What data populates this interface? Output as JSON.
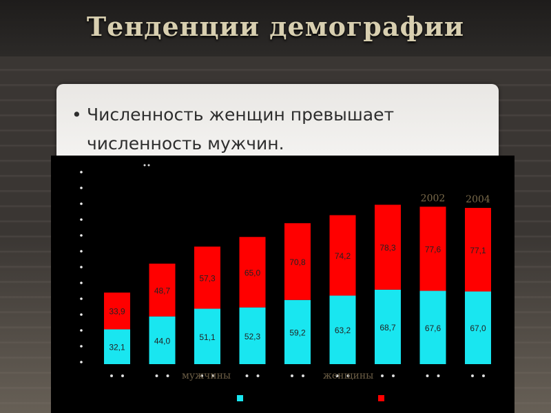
{
  "slide": {
    "title": "Тенденции демографии",
    "bullet_icon": "•",
    "bullet_text": "Численность женщин превышает численность мужчин."
  },
  "chart_data": {
    "type": "bar",
    "stacked": true,
    "categories": [
      "",
      "",
      "",
      "",
      "",
      "",
      "",
      "2002",
      "2004"
    ],
    "series": [
      {
        "name": "мужчины",
        "color": "#19e6f0",
        "values": [
          32.1,
          44.0,
          51.1,
          52.3,
          59.2,
          63.2,
          68.7,
          67.6,
          67.0
        ],
        "labels": [
          "32,1",
          "44,0",
          "51,1",
          "52,3",
          "59,2",
          "63,2",
          "68,7",
          "67,6",
          "67,0"
        ]
      },
      {
        "name": "женщины",
        "color": "#ff0000",
        "values": [
          33.9,
          48.7,
          57.3,
          65.0,
          70.8,
          74.2,
          78.3,
          77.6,
          77.1
        ],
        "labels": [
          "33,9",
          "48,7",
          "57,3",
          "65,0",
          "70,8",
          "74,2",
          "78,3",
          "77,6",
          "77,1"
        ]
      }
    ],
    "ylim": [
      0,
      155
    ],
    "legend": "bottom"
  }
}
